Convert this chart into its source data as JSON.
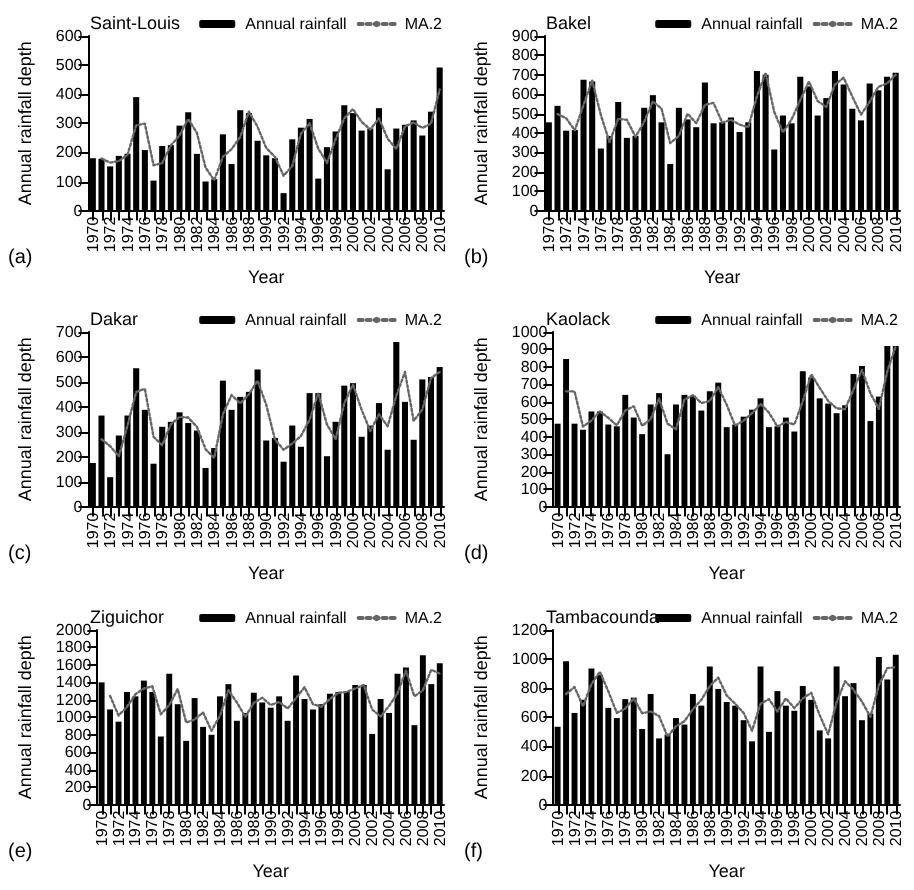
{
  "chart_data": [
    {
      "type": "bar",
      "title": "Saint-Louis",
      "xlabel": "Year",
      "ylabel": "Annual rainfall depth",
      "annotations": [
        "(a)"
      ],
      "legend": "top",
      "grid": false,
      "line_style": "dotted",
      "marker": "none",
      "ylim": [
        0,
        600
      ],
      "yticks": [
        0,
        100,
        200,
        300,
        400,
        500,
        600
      ],
      "categories": [
        "1970",
        null,
        "1972",
        null,
        "1974",
        null,
        "1976",
        null,
        "1978",
        null,
        "1980",
        null,
        "1982",
        null,
        "1984",
        null,
        "1986",
        null,
        "1988",
        null,
        "1990",
        null,
        "1992",
        null,
        "1994",
        null,
        "1996",
        null,
        "1998",
        null,
        "2000",
        null,
        "2002",
        null,
        "2004",
        null,
        "2006",
        null,
        "2008",
        null,
        "2010"
      ],
      "series": [
        {
          "name": "Annual rainfall",
          "color": "#000000",
          "values": [
            180,
            178,
            152,
            188,
            195,
            390,
            208,
            103,
            222,
            225,
            292,
            338,
            195,
            100,
            108,
            262,
            160,
            345,
            335,
            240,
            190,
            180,
            60,
            245,
            285,
            315,
            110,
            218,
            272,
            362,
            335,
            275,
            282,
            352,
            142,
            282,
            295,
            310,
            258,
            340,
            492
          ]
        },
        {
          "type": "line",
          "name": "MA.2",
          "color": "#666666",
          "values": [
            null,
            179,
            165,
            170,
            192,
            293,
            299,
            156,
            163,
            224,
            259,
            315,
            267,
            148,
            104,
            185,
            211,
            253,
            340,
            288,
            215,
            185,
            120,
            153,
            265,
            300,
            213,
            164,
            245,
            317,
            349,
            305,
            279,
            317,
            247,
            212,
            289,
            303,
            284,
            299,
            416
          ]
        }
      ]
    },
    {
      "type": "bar",
      "title": "Bakel",
      "xlabel": "Year",
      "ylabel": "Annual rainfall depth",
      "annotations": [
        "(b)"
      ],
      "legend": "top",
      "grid": false,
      "line_style": "dotted",
      "marker": "none",
      "ylim": [
        0,
        900
      ],
      "yticks": [
        0,
        100,
        200,
        300,
        400,
        500,
        600,
        700,
        800,
        900
      ],
      "categories": [
        "1970",
        null,
        "1972",
        null,
        "1974",
        null,
        "1976",
        null,
        "1978",
        null,
        "1980",
        null,
        "1982",
        null,
        "1984",
        null,
        "1986",
        null,
        "1988",
        null,
        "1990",
        null,
        "1992",
        null,
        "1994",
        null,
        "1996",
        null,
        "1998",
        null,
        "2000",
        null,
        "2002",
        null,
        "2004",
        null,
        "2006",
        null,
        "2008",
        null,
        "2010"
      ],
      "series": [
        {
          "name": "Annual rainfall",
          "color": "#000000",
          "values": [
            455,
            540,
            412,
            415,
            675,
            665,
            320,
            385,
            560,
            375,
            385,
            530,
            595,
            455,
            240,
            530,
            470,
            430,
            660,
            450,
            455,
            480,
            405,
            455,
            720,
            700,
            315,
            490,
            450,
            690,
            640,
            490,
            580,
            720,
            650,
            525,
            465,
            655,
            620,
            690,
            710
          ]
        },
        {
          "type": "line",
          "name": "MA.2",
          "color": "#666666",
          "values": [
            null,
            498,
            476,
            414,
            545,
            670,
            493,
            353,
            473,
            468,
            380,
            458,
            563,
            525,
            348,
            385,
            500,
            450,
            545,
            555,
            453,
            468,
            443,
            430,
            588,
            710,
            508,
            403,
            470,
            570,
            665,
            565,
            535,
            650,
            685,
            588,
            495,
            560,
            638,
            655,
            700
          ]
        }
      ]
    },
    {
      "type": "bar",
      "title": "Dakar",
      "xlabel": "Year",
      "ylabel": "Annual rainfall depth",
      "annotations": [
        "(c)"
      ],
      "legend": "top",
      "grid": false,
      "line_style": "dotted",
      "marker": "none",
      "ylim": [
        0,
        700
      ],
      "yticks": [
        0,
        100,
        200,
        300,
        400,
        500,
        600,
        700
      ],
      "categories": [
        "1970",
        null,
        "1972",
        null,
        "1974",
        null,
        "1976",
        null,
        "1978",
        null,
        "1980",
        null,
        "1982",
        null,
        "1984",
        null,
        "1986",
        null,
        "1988",
        null,
        "1990",
        null,
        "1992",
        null,
        "1994",
        null,
        "1996",
        null,
        "1998",
        null,
        "2000",
        null,
        "2002",
        null,
        "2004",
        null,
        "2006",
        null,
        "2008",
        null,
        "2010"
      ],
      "series": [
        {
          "name": "Annual rainfall",
          "color": "#000000",
          "values": [
            175,
            365,
            118,
            285,
            365,
            555,
            388,
            172,
            320,
            340,
            378,
            335,
            305,
            155,
            235,
            505,
            388,
            440,
            460,
            550,
            265,
            275,
            180,
            325,
            240,
            455,
            455,
            202,
            340,
            485,
            495,
            280,
            325,
            415,
            228,
            660,
            420,
            268,
            510,
            520,
            560
          ]
        },
        {
          "type": "line",
          "name": "MA.2",
          "color": "#666666",
          "values": [
            null,
            270,
            242,
            202,
            325,
            460,
            472,
            280,
            246,
            330,
            359,
            357,
            320,
            230,
            195,
            370,
            447,
            414,
            450,
            505,
            408,
            270,
            228,
            253,
            283,
            348,
            455,
            329,
            271,
            413,
            490,
            388,
            303,
            370,
            322,
            444,
            540,
            344,
            389,
            515,
            540
          ]
        }
      ]
    },
    {
      "type": "bar",
      "title": "Kaolack",
      "xlabel": "Year",
      "ylabel": "Annual rainfall depth",
      "annotations": [
        "(d)"
      ],
      "legend": "top",
      "grid": false,
      "line_style": "dotted",
      "marker": "none",
      "ylim": [
        0,
        1000
      ],
      "yticks": [
        0,
        100,
        200,
        300,
        400,
        500,
        600,
        700,
        800,
        900,
        1000
      ],
      "categories": [
        "1970",
        null,
        "1972",
        null,
        "1974",
        null,
        "1976",
        null,
        "1978",
        null,
        "1980",
        null,
        "1982",
        null,
        "1984",
        null,
        "1986",
        null,
        "1988",
        null,
        "1990",
        null,
        "1992",
        null,
        "1994",
        null,
        "1996",
        null,
        "1998",
        null,
        "2000",
        null,
        "2002",
        null,
        "2004",
        null,
        "2006",
        null,
        "2008",
        null,
        "2010"
      ],
      "series": [
        {
          "name": "Annual rainfall",
          "color": "#000000",
          "values": [
            475,
            845,
            475,
            440,
            545,
            545,
            470,
            460,
            640,
            510,
            415,
            585,
            650,
            300,
            585,
            640,
            635,
            550,
            660,
            710,
            455,
            470,
            515,
            555,
            620,
            455,
            460,
            510,
            430,
            775,
            740,
            620,
            590,
            535,
            580,
            760,
            805,
            490,
            630,
            920,
            920
          ]
        },
        {
          "type": "line",
          "name": "MA.2",
          "color": "#666666",
          "values": [
            null,
            660,
            660,
            458,
            493,
            545,
            508,
            465,
            550,
            575,
            463,
            500,
            618,
            475,
            443,
            613,
            638,
            593,
            605,
            685,
            583,
            463,
            493,
            535,
            588,
            538,
            458,
            485,
            470,
            603,
            758,
            680,
            605,
            563,
            558,
            670,
            783,
            648,
            560,
            775,
            920
          ]
        }
      ]
    },
    {
      "type": "bar",
      "title": "Ziguichor",
      "xlabel": "Year",
      "ylabel": "Annual rainfall depth",
      "annotations": [
        "(e)"
      ],
      "legend": "top",
      "grid": false,
      "line_style": "dotted",
      "marker": "none",
      "ylim": [
        0,
        2000
      ],
      "yticks": [
        0,
        200,
        400,
        600,
        800,
        1000,
        1200,
        1400,
        1600,
        1800,
        2000
      ],
      "categories": [
        "1970",
        null,
        "1972",
        null,
        "1974",
        null,
        "1976",
        null,
        "1978",
        null,
        "1980",
        null,
        "1982",
        null,
        "1984",
        null,
        "1986",
        null,
        "1988",
        null,
        "1990",
        null,
        "1992",
        null,
        "1994",
        null,
        "1996",
        null,
        "1998",
        null,
        "2000",
        null,
        "2002",
        null,
        "2004",
        null,
        "2006",
        null,
        "2008",
        null,
        "2010"
      ],
      "series": [
        {
          "name": "Annual rainfall",
          "color": "#000000",
          "values": [
            1400,
            1090,
            950,
            1290,
            1240,
            1420,
            1290,
            780,
            1500,
            1150,
            730,
            1220,
            890,
            800,
            1240,
            1380,
            960,
            1050,
            1280,
            1170,
            1110,
            1240,
            960,
            1480,
            1210,
            1090,
            1150,
            1270,
            1290,
            1290,
            1370,
            1370,
            810,
            1210,
            1050,
            1500,
            1570,
            910,
            1710,
            1380,
            1620
          ]
        },
        {
          "type": "line",
          "name": "MA.2",
          "color": "#666666",
          "values": [
            null,
            1245,
            1020,
            1120,
            1265,
            1330,
            1355,
            1035,
            1140,
            1325,
            940,
            975,
            1055,
            845,
            1020,
            1310,
            1170,
            1005,
            1165,
            1225,
            1140,
            1175,
            1100,
            1220,
            1345,
            1150,
            1120,
            1210,
            1280,
            1290,
            1330,
            1370,
            1090,
            1010,
            1130,
            1275,
            1535,
            1240,
            1310,
            1545,
            1500
          ]
        }
      ]
    },
    {
      "type": "bar",
      "title": "Tambacounda",
      "xlabel": "Year",
      "ylabel": "Annual rainfall depth",
      "annotations": [
        "(f)"
      ],
      "legend": "top",
      "grid": false,
      "line_style": "dotted",
      "marker": "none",
      "ylim": [
        0,
        1200
      ],
      "yticks": [
        0,
        200,
        400,
        600,
        800,
        1000,
        1200
      ],
      "categories": [
        "1970",
        null,
        "1972",
        null,
        "1974",
        null,
        "1976",
        null,
        "1978",
        null,
        "1980",
        null,
        "1982",
        null,
        "1984",
        null,
        "1986",
        null,
        "1988",
        null,
        "1990",
        null,
        "1992",
        null,
        "1994",
        null,
        "1996",
        null,
        "1998",
        null,
        "2000",
        null,
        "2002",
        null,
        "2004",
        null,
        "2006",
        null,
        "2008",
        null,
        "2010"
      ],
      "series": [
        {
          "name": "Annual rainfall",
          "color": "#000000",
          "values": [
            535,
            985,
            630,
            720,
            935,
            890,
            665,
            595,
            725,
            735,
            520,
            760,
            455,
            480,
            595,
            550,
            760,
            680,
            950,
            795,
            705,
            680,
            580,
            435,
            950,
            500,
            780,
            680,
            645,
            815,
            720,
            510,
            455,
            950,
            745,
            835,
            580,
            625,
            1015,
            860,
            1030
          ]
        },
        {
          "type": "line",
          "name": "MA.2",
          "color": "#666666",
          "values": [
            null,
            760,
            808,
            675,
            828,
            913,
            778,
            630,
            660,
            730,
            628,
            640,
            608,
            468,
            538,
            573,
            655,
            720,
            815,
            873,
            750,
            693,
            630,
            508,
            693,
            725,
            640,
            730,
            663,
            730,
            768,
            615,
            483,
            703,
            848,
            790,
            708,
            603,
            820,
            938,
            945
          ]
        }
      ]
    }
  ]
}
